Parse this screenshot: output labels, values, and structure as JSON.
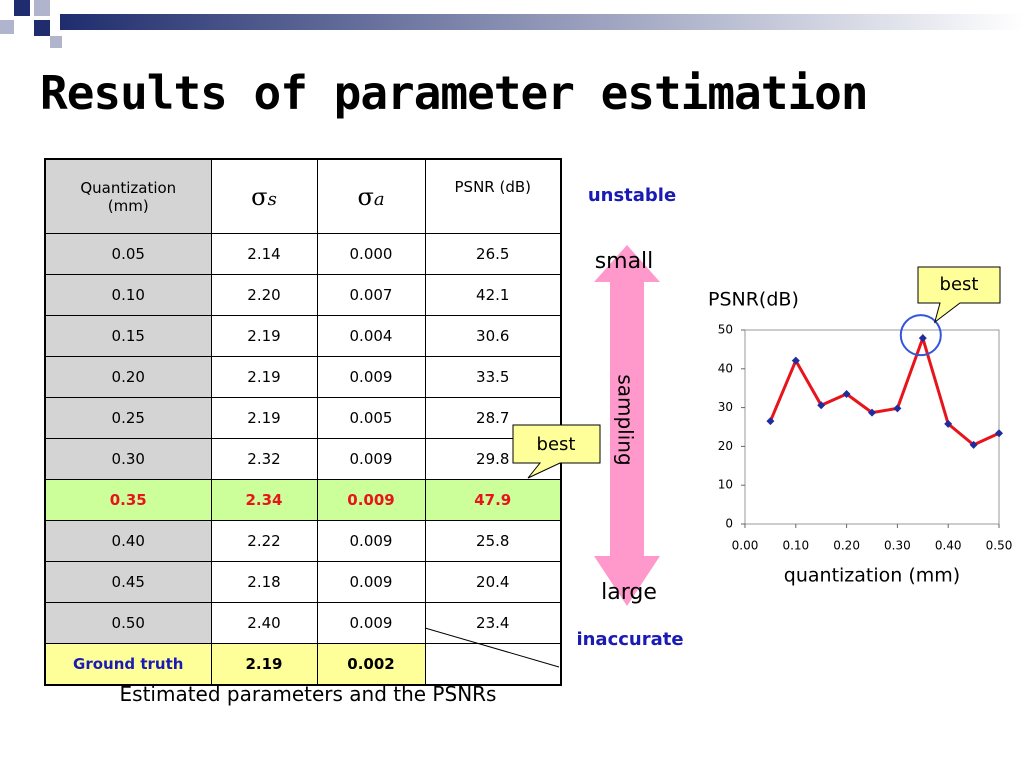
{
  "title": "Results of parameter estimation",
  "table": {
    "header": [
      "Quantization (mm)",
      {
        "symbol": "σ",
        "sub": "s"
      },
      {
        "symbol": "σ",
        "sub": "a"
      },
      "PSNR (dB)"
    ],
    "rows": [
      [
        "0.05",
        "2.14",
        "0.000",
        "26.5"
      ],
      [
        "0.10",
        "2.20",
        "0.007",
        "42.1"
      ],
      [
        "0.15",
        "2.19",
        "0.004",
        "30.6"
      ],
      [
        "0.20",
        "2.19",
        "0.009",
        "33.5"
      ],
      [
        "0.25",
        "2.19",
        "0.005",
        "28.7"
      ],
      [
        "0.30",
        "2.32",
        "0.009",
        "29.8"
      ],
      [
        "0.35",
        "2.34",
        "0.009",
        "47.9"
      ],
      [
        "0.40",
        "2.22",
        "0.009",
        "25.8"
      ],
      [
        "0.45",
        "2.18",
        "0.009",
        "20.4"
      ],
      [
        "0.50",
        "2.40",
        "0.009",
        "23.4"
      ]
    ],
    "ground_truth": [
      "Ground truth",
      "2.19",
      "0.002"
    ],
    "caption": "Estimated parameters and the PSNRs",
    "callout": "best"
  },
  "arrow": {
    "top": "unstable",
    "upper": "small",
    "middle": "sampling",
    "lower": "large",
    "bottom": "inaccurate"
  },
  "chart_data": {
    "type": "line",
    "title": "PSNR(dB)",
    "x_label": "quantization (mm)",
    "annotation": "best",
    "x": [
      0.05,
      0.1,
      0.15,
      0.2,
      0.25,
      0.3,
      0.35,
      0.4,
      0.45,
      0.5
    ],
    "series": [
      {
        "values": [
          26.5,
          42.1,
          30.6,
          33.5,
          28.7,
          29.8,
          47.9,
          25.8,
          20.4,
          23.4
        ],
        "color": "#e8141c",
        "marker_color": "#1f2d9c"
      }
    ],
    "xlim": [
      0,
      0.5
    ],
    "xticks": [
      {
        "value": 0,
        "label": "0.00"
      },
      {
        "value": 0.1,
        "label": "0.10"
      },
      {
        "value": 0.2,
        "label": "0.20"
      },
      {
        "value": 0.3,
        "label": "0.30"
      },
      {
        "value": 0.4,
        "label": "0.40"
      },
      {
        "value": 0.5,
        "label": "0.50"
      }
    ],
    "ylim": [
      0,
      50
    ],
    "yticks": [
      0,
      10,
      20,
      30,
      40,
      50
    ]
  }
}
